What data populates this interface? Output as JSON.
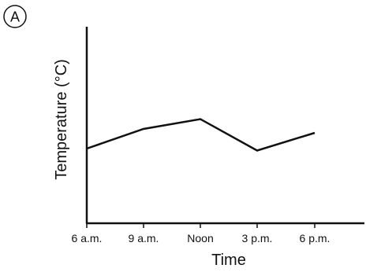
{
  "panel": {
    "label": "A"
  },
  "colors": {
    "line": "#111111",
    "axis": "#111111",
    "background": "#ffffff"
  },
  "chart_data": {
    "type": "line",
    "title": "",
    "xlabel": "Time",
    "ylabel": "Temperature (°C)",
    "categories": [
      "6 a.m.",
      "9 a.m.",
      "Noon",
      "3 p.m.",
      "6 p.m."
    ],
    "series": [
      {
        "values": [
          3.8,
          4.8,
          5.3,
          3.7,
          4.6
        ]
      }
    ],
    "ylim": [
      0,
      10
    ],
    "grid": false,
    "y_ticks_labeled": false
  }
}
